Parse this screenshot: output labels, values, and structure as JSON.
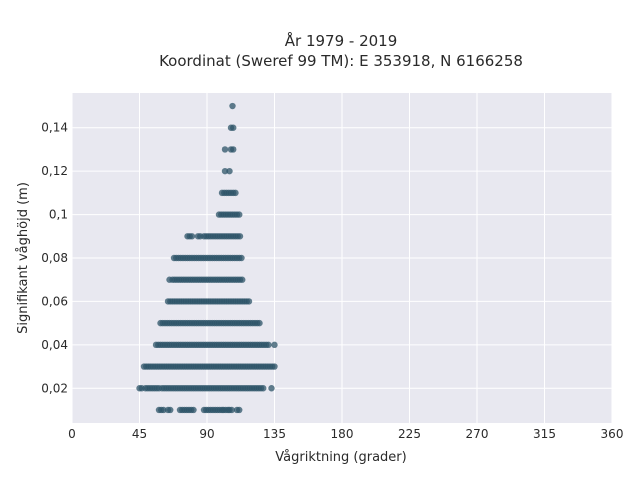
{
  "chart_data": {
    "type": "scatter",
    "title": "År 1979 - 2019",
    "subtitle": "Koordinat (Sweref 99 TM): E 353918, N 6166258",
    "xlabel": "Vågriktning (grader)",
    "ylabel": "Signifikant våghöjd (m)",
    "xlim": [
      0,
      360
    ],
    "ylim": [
      0.004,
      0.156
    ],
    "x_ticks": [
      0,
      45,
      90,
      135,
      180,
      225,
      270,
      315,
      360
    ],
    "x_tick_labels": [
      "0",
      "45",
      "90",
      "135",
      "180",
      "225",
      "270",
      "315",
      "360"
    ],
    "y_ticks": [
      0.02,
      0.04,
      0.06,
      0.08,
      0.1,
      0.12,
      0.14
    ],
    "y_tick_labels": [
      "0,02",
      "0,04",
      "0,06",
      "0,08",
      "0,1",
      "0,12",
      "0,14"
    ],
    "grid": true,
    "legend": "none",
    "marker_color": "#2e5468",
    "plot_background": "#e8e8f0",
    "bands": [
      {
        "y": 0.01,
        "x_segments": [
          [
            58,
            62
          ],
          [
            64,
            66
          ],
          [
            72,
            82
          ],
          [
            88,
            100
          ],
          [
            101,
            104
          ],
          [
            105,
            107
          ],
          [
            110,
            112
          ]
        ]
      },
      {
        "y": 0.02,
        "x_segments": [
          [
            45,
            47
          ],
          [
            49,
            58
          ],
          [
            60,
            128
          ],
          [
            133,
            134
          ]
        ]
      },
      {
        "y": 0.03,
        "x_segments": [
          [
            48,
            135
          ]
        ]
      },
      {
        "y": 0.04,
        "x_segments": [
          [
            56,
            58
          ],
          [
            59,
            132
          ],
          [
            135,
            136
          ]
        ]
      },
      {
        "y": 0.05,
        "x_segments": [
          [
            59,
            125
          ]
        ]
      },
      {
        "y": 0.06,
        "x_segments": [
          [
            64,
            119
          ]
        ]
      },
      {
        "y": 0.07,
        "x_segments": [
          [
            65,
            66
          ],
          [
            67,
            114
          ]
        ]
      },
      {
        "y": 0.08,
        "x_segments": [
          [
            68,
            113
          ]
        ]
      },
      {
        "y": 0.09,
        "x_segments": [
          [
            77,
            80
          ],
          [
            84,
            86
          ],
          [
            88,
            112
          ]
        ]
      },
      {
        "y": 0.1,
        "x_segments": [
          [
            98,
            112
          ]
        ]
      },
      {
        "y": 0.11,
        "x_segments": [
          [
            100,
            110
          ]
        ]
      },
      {
        "y": 0.12,
        "x_segments": [
          [
            102,
            103
          ],
          [
            105,
            106
          ]
        ]
      },
      {
        "y": 0.13,
        "x_segments": [
          [
            102,
            103
          ],
          [
            106,
            108
          ]
        ]
      },
      {
        "y": 0.14,
        "x_segments": [
          [
            106,
            108
          ]
        ]
      },
      {
        "y": 0.15,
        "x_segments": [
          [
            107,
            107
          ]
        ]
      }
    ]
  }
}
